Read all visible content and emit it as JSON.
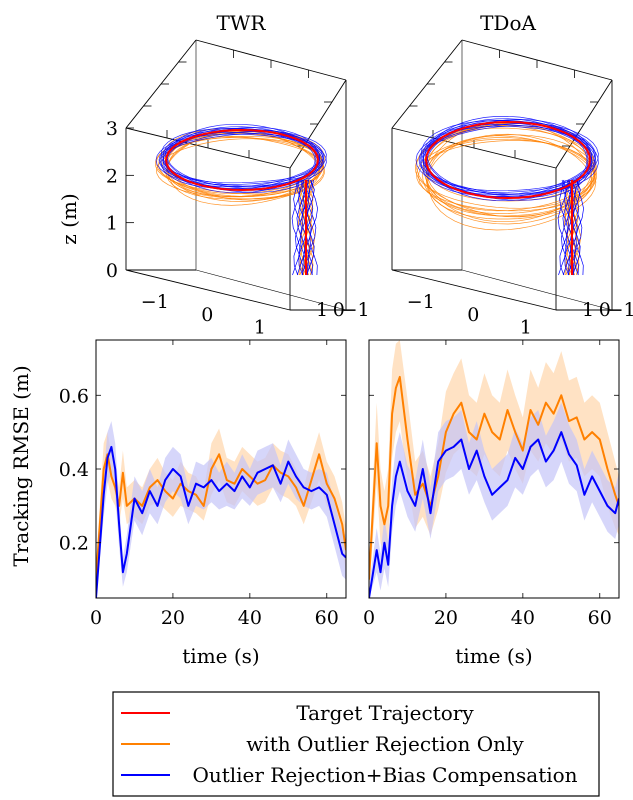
{
  "colors": {
    "target": "#ff0000",
    "orange": "#ff8000",
    "blue": "#0000ff",
    "orange_band": "#ffd8b0",
    "blue_band": "#c4c4f8"
  },
  "legend": {
    "entries": [
      {
        "label": "Target Trajectory",
        "color": "#ff0000"
      },
      {
        "label": "with Outlier Rejection Only",
        "color": "#ff8000"
      },
      {
        "label": "Outlier Rejection+Bias Compensation",
        "color": "#0000ff"
      }
    ]
  },
  "chart_data": [
    {
      "type": "line3d",
      "title": "TWR",
      "zlabel": "z (m)",
      "xticks": [
        "−1",
        "0",
        "1"
      ],
      "yticks": [
        "−1",
        "0",
        "1"
      ],
      "zticks": [
        "0",
        "1",
        "2",
        "3"
      ],
      "series": [
        {
          "name": "Target Trajectory",
          "color": "#ff0000"
        },
        {
          "name": "with Outlier Rejection Only",
          "color": "#ff8000"
        },
        {
          "name": "Outlier Rejection+Bias Compensation",
          "color": "#0000ff"
        }
      ]
    },
    {
      "type": "line3d",
      "title": "TDoA",
      "xticks": [
        "−1",
        "0",
        "1"
      ],
      "yticks": [
        "−1",
        "0",
        "1"
      ],
      "series": [
        {
          "name": "Target Trajectory",
          "color": "#ff0000"
        },
        {
          "name": "with Outlier Rejection Only",
          "color": "#ff8000"
        },
        {
          "name": "Outlier Rejection+Bias Compensation",
          "color": "#0000ff"
        }
      ]
    },
    {
      "type": "line",
      "xlabel": "time (s)",
      "ylabel": "Tracking RMSE (m)",
      "xlim": [
        0,
        65
      ],
      "ylim": [
        0.05,
        0.75
      ],
      "xticks": [
        0,
        20,
        40,
        60
      ],
      "yticks": [
        0.2,
        0.4,
        0.6
      ],
      "x": [
        0,
        2,
        3,
        4,
        5,
        6,
        7,
        8,
        10,
        12,
        14,
        16,
        18,
        20,
        22,
        24,
        26,
        28,
        30,
        32,
        34,
        36,
        38,
        40,
        42,
        44,
        46,
        48,
        50,
        52,
        54,
        56,
        58,
        60,
        62,
        64,
        65
      ],
      "series": [
        {
          "name": "with Outlier Rejection Only",
          "color": "#ff8000",
          "values": [
            0.1,
            0.4,
            0.44,
            0.38,
            0.35,
            0.3,
            0.39,
            0.3,
            0.32,
            0.3,
            0.35,
            0.37,
            0.34,
            0.32,
            0.36,
            0.34,
            0.33,
            0.3,
            0.4,
            0.44,
            0.37,
            0.36,
            0.4,
            0.38,
            0.36,
            0.37,
            0.41,
            0.39,
            0.38,
            0.35,
            0.3,
            0.37,
            0.44,
            0.36,
            0.32,
            0.25,
            0.18
          ]
        },
        {
          "name": "Outlier Rejection+Bias Compensation",
          "color": "#0000ff",
          "values": [
            0.05,
            0.33,
            0.43,
            0.46,
            0.4,
            0.25,
            0.12,
            0.17,
            0.32,
            0.28,
            0.34,
            0.3,
            0.37,
            0.4,
            0.38,
            0.3,
            0.36,
            0.35,
            0.37,
            0.34,
            0.36,
            0.34,
            0.38,
            0.35,
            0.39,
            0.4,
            0.41,
            0.36,
            0.42,
            0.38,
            0.35,
            0.34,
            0.35,
            0.33,
            0.25,
            0.17,
            0.16
          ]
        }
      ],
      "bands": [
        {
          "series": "with Outlier Rejection Only",
          "lower": [
            0.06,
            0.33,
            0.37,
            0.32,
            0.3,
            0.25,
            0.32,
            0.25,
            0.27,
            0.25,
            0.3,
            0.31,
            0.29,
            0.27,
            0.3,
            0.29,
            0.28,
            0.26,
            0.33,
            0.37,
            0.31,
            0.3,
            0.34,
            0.32,
            0.3,
            0.31,
            0.35,
            0.33,
            0.32,
            0.3,
            0.25,
            0.31,
            0.37,
            0.3,
            0.26,
            0.19,
            0.12
          ],
          "upper": [
            0.14,
            0.47,
            0.5,
            0.44,
            0.4,
            0.35,
            0.45,
            0.35,
            0.37,
            0.35,
            0.4,
            0.43,
            0.39,
            0.37,
            0.42,
            0.39,
            0.38,
            0.34,
            0.47,
            0.51,
            0.43,
            0.42,
            0.46,
            0.44,
            0.42,
            0.43,
            0.47,
            0.45,
            0.44,
            0.4,
            0.35,
            0.43,
            0.5,
            0.42,
            0.38,
            0.31,
            0.24
          ]
        },
        {
          "series": "Outlier Rejection+Bias Compensation",
          "lower": [
            0.05,
            0.27,
            0.36,
            0.39,
            0.33,
            0.19,
            0.08,
            0.12,
            0.26,
            0.22,
            0.28,
            0.25,
            0.31,
            0.34,
            0.32,
            0.25,
            0.3,
            0.29,
            0.31,
            0.29,
            0.3,
            0.29,
            0.32,
            0.3,
            0.33,
            0.34,
            0.35,
            0.31,
            0.36,
            0.32,
            0.3,
            0.29,
            0.3,
            0.27,
            0.19,
            0.11,
            0.1
          ],
          "upper": [
            0.08,
            0.39,
            0.5,
            0.53,
            0.47,
            0.31,
            0.16,
            0.22,
            0.38,
            0.34,
            0.4,
            0.35,
            0.43,
            0.46,
            0.44,
            0.35,
            0.42,
            0.41,
            0.43,
            0.39,
            0.42,
            0.39,
            0.44,
            0.4,
            0.45,
            0.46,
            0.47,
            0.41,
            0.48,
            0.44,
            0.4,
            0.39,
            0.4,
            0.39,
            0.31,
            0.23,
            0.22
          ]
        }
      ]
    },
    {
      "type": "line",
      "xlabel": "time (s)",
      "xlim": [
        0,
        65
      ],
      "ylim": [
        0.05,
        0.75
      ],
      "xticks": [
        0,
        20,
        40,
        60
      ],
      "x": [
        0,
        2,
        3,
        4,
        5,
        6,
        7,
        8,
        10,
        12,
        14,
        16,
        18,
        20,
        22,
        24,
        26,
        28,
        30,
        32,
        34,
        36,
        38,
        40,
        42,
        44,
        46,
        48,
        50,
        52,
        54,
        56,
        58,
        60,
        62,
        64,
        65
      ],
      "series": [
        {
          "name": "with Outlier Rejection Only",
          "color": "#ff8000",
          "values": [
            0.1,
            0.47,
            0.3,
            0.25,
            0.3,
            0.55,
            0.62,
            0.65,
            0.48,
            0.33,
            0.36,
            0.3,
            0.38,
            0.5,
            0.55,
            0.58,
            0.5,
            0.48,
            0.55,
            0.5,
            0.48,
            0.56,
            0.5,
            0.45,
            0.56,
            0.52,
            0.58,
            0.55,
            0.6,
            0.53,
            0.54,
            0.48,
            0.5,
            0.48,
            0.4,
            0.33,
            0.3
          ]
        },
        {
          "name": "Outlier Rejection+Bias Compensation",
          "color": "#0000ff",
          "values": [
            0.05,
            0.18,
            0.12,
            0.2,
            0.14,
            0.3,
            0.38,
            0.42,
            0.34,
            0.3,
            0.4,
            0.28,
            0.42,
            0.45,
            0.46,
            0.48,
            0.4,
            0.45,
            0.38,
            0.33,
            0.35,
            0.37,
            0.43,
            0.4,
            0.46,
            0.48,
            0.42,
            0.45,
            0.5,
            0.44,
            0.41,
            0.33,
            0.38,
            0.34,
            0.3,
            0.28,
            0.32
          ]
        }
      ],
      "bands": [
        {
          "series": "with Outlier Rejection Only",
          "lower": [
            0.06,
            0.36,
            0.2,
            0.16,
            0.2,
            0.43,
            0.5,
            0.53,
            0.37,
            0.24,
            0.27,
            0.22,
            0.29,
            0.39,
            0.44,
            0.46,
            0.4,
            0.38,
            0.44,
            0.4,
            0.38,
            0.45,
            0.4,
            0.36,
            0.45,
            0.42,
            0.47,
            0.44,
            0.48,
            0.42,
            0.43,
            0.38,
            0.4,
            0.38,
            0.3,
            0.24,
            0.22
          ],
          "upper": [
            0.14,
            0.58,
            0.4,
            0.34,
            0.4,
            0.67,
            0.74,
            0.75,
            0.59,
            0.42,
            0.45,
            0.38,
            0.47,
            0.61,
            0.66,
            0.7,
            0.6,
            0.58,
            0.66,
            0.6,
            0.58,
            0.67,
            0.6,
            0.54,
            0.67,
            0.62,
            0.69,
            0.66,
            0.72,
            0.64,
            0.65,
            0.58,
            0.6,
            0.58,
            0.5,
            0.42,
            0.38
          ]
        },
        {
          "series": "Outlier Rejection+Bias Compensation",
          "lower": [
            0.05,
            0.12,
            0.07,
            0.13,
            0.08,
            0.23,
            0.3,
            0.34,
            0.27,
            0.23,
            0.32,
            0.21,
            0.34,
            0.37,
            0.38,
            0.4,
            0.33,
            0.37,
            0.31,
            0.26,
            0.28,
            0.3,
            0.35,
            0.33,
            0.38,
            0.4,
            0.35,
            0.37,
            0.42,
            0.36,
            0.34,
            0.26,
            0.31,
            0.27,
            0.23,
            0.21,
            0.25
          ],
          "upper": [
            0.08,
            0.24,
            0.17,
            0.27,
            0.2,
            0.37,
            0.46,
            0.5,
            0.41,
            0.37,
            0.48,
            0.35,
            0.5,
            0.53,
            0.54,
            0.56,
            0.47,
            0.53,
            0.45,
            0.4,
            0.42,
            0.44,
            0.51,
            0.47,
            0.54,
            0.56,
            0.49,
            0.53,
            0.58,
            0.52,
            0.48,
            0.4,
            0.45,
            0.41,
            0.37,
            0.35,
            0.39
          ]
        }
      ]
    }
  ]
}
